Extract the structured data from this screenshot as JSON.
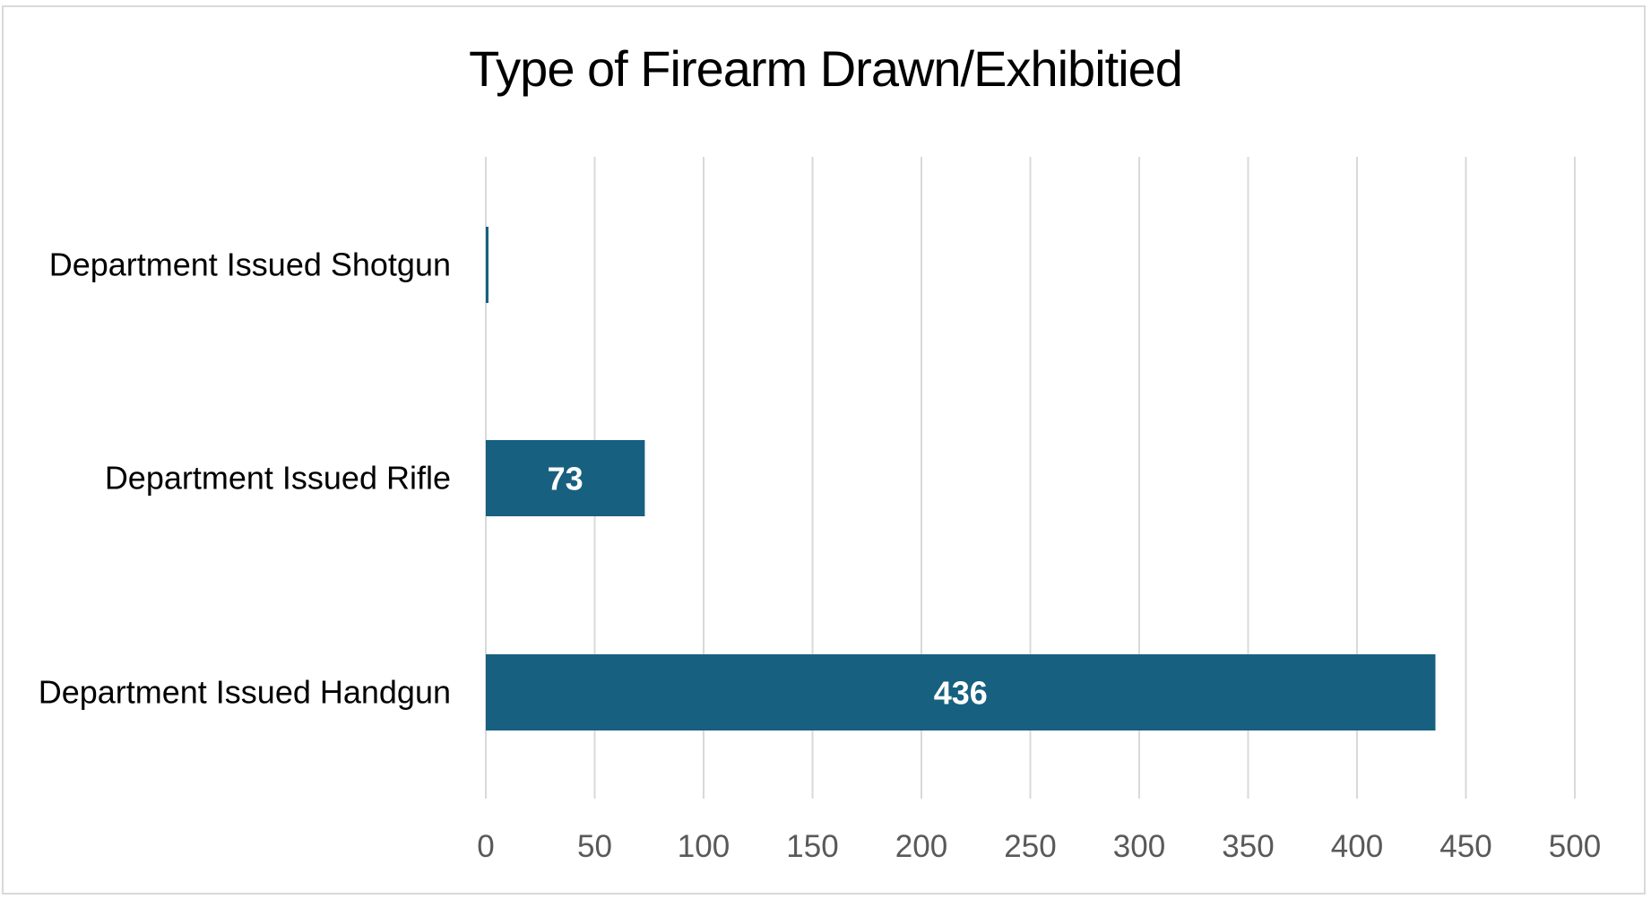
{
  "chart_data": {
    "type": "bar",
    "orientation": "horizontal",
    "title": "Type of Firearm Drawn/Exhibitied",
    "categories": [
      "Department Issued Shotgun",
      "Department Issued Rifle",
      "Department Issued Handgun"
    ],
    "values": [
      1,
      73,
      436
    ],
    "data_labels": [
      "",
      "73",
      "436"
    ],
    "xlim": [
      0,
      500
    ],
    "xticks": [
      "0",
      "50",
      "100",
      "150",
      "200",
      "250",
      "300",
      "350",
      "400",
      "450",
      "500"
    ],
    "xlabel": "",
    "ylabel": "",
    "grid": "vertical",
    "legend": "none",
    "bar_color": "#17607f"
  }
}
